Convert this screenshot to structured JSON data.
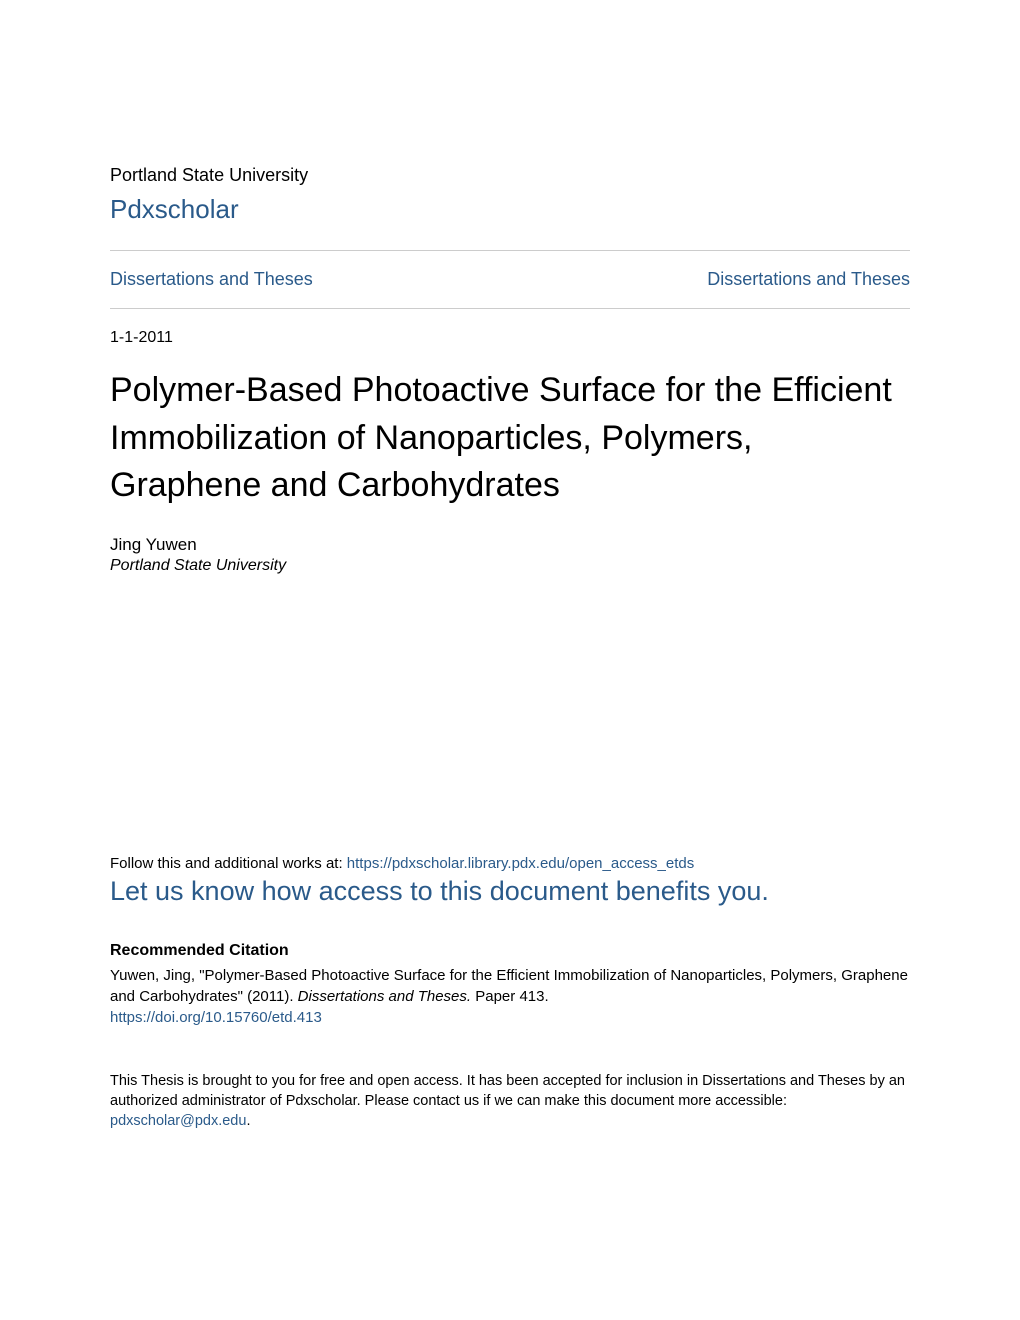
{
  "header": {
    "university": "Portland State University",
    "repository": "Pdxscholar"
  },
  "nav": {
    "left_link": "Dissertations and Theses",
    "right_link": "Dissertations and Theses"
  },
  "metadata": {
    "date": "1-1-2011"
  },
  "document": {
    "title": "Polymer-Based Photoactive Surface for the Efficient Immobilization of Nanoparticles, Polymers, Graphene and Carbohydrates",
    "author": "Jing Yuwen",
    "affiliation": "Portland State University"
  },
  "follow": {
    "prefix": "Follow this and additional works at: ",
    "url": "https://pdxscholar.library.pdx.edu/open_access_etds"
  },
  "benefits": {
    "text": "Let us know how access to this document benefits you."
  },
  "citation": {
    "heading": "Recommended Citation",
    "text_part1": "Yuwen, Jing, \"Polymer-Based Photoactive Surface for the Efficient Immobilization of Nanoparticles, Polymers, Graphene and Carbohydrates\" (2011). ",
    "text_italic": "Dissertations and Theses.",
    "text_part2": " Paper 413.",
    "doi": "https://doi.org/10.15760/etd.413"
  },
  "footer": {
    "text_part1": "This Thesis is brought to you for free and open access. It has been accepted for inclusion in Dissertations and Theses by an authorized administrator of Pdxscholar. Please contact us if we can make this document more accessible: ",
    "email": "pdxscholar@pdx.edu",
    "text_part2": "."
  },
  "colors": {
    "link_color": "#2a5a8a",
    "text_color": "#000000",
    "border_color": "#cccccc",
    "background": "#ffffff"
  }
}
